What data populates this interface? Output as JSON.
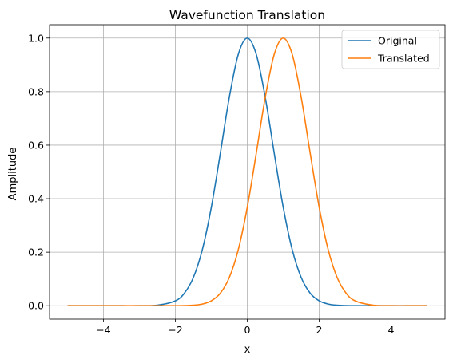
{
  "chart_data": {
    "type": "line",
    "title": "Wavefunction Translation",
    "xlabel": "x",
    "ylabel": "Amplitude",
    "xlim": [
      -5.5,
      5.5
    ],
    "ylim": [
      -0.05,
      1.05
    ],
    "xticks": [
      -4,
      -2,
      0,
      2,
      4
    ],
    "xtick_labels": [
      "−4",
      "−2",
      "0",
      "2",
      "4"
    ],
    "yticks": [
      0.0,
      0.2,
      0.4,
      0.6,
      0.8,
      1.0
    ],
    "ytick_labels": [
      "0.0",
      "0.2",
      "0.4",
      "0.6",
      "0.8",
      "1.0"
    ],
    "grid": true,
    "legend_position": "top-right",
    "x": [
      -5.0,
      -4.5,
      -4.0,
      -3.5,
      -3.0,
      -2.5,
      -2.0,
      -1.75,
      -1.5,
      -1.25,
      -1.0,
      -0.75,
      -0.5,
      -0.25,
      0.0,
      0.25,
      0.5,
      0.75,
      1.0,
      1.25,
      1.5,
      1.75,
      2.0,
      2.25,
      2.5,
      2.75,
      3.0,
      3.5,
      4.0,
      4.5,
      5.0
    ],
    "series": [
      {
        "name": "Original",
        "color": "#1f77b4",
        "values": [
          0.0,
          0.0,
          0.0,
          0.0,
          0.0001,
          0.0019,
          0.0183,
          0.0468,
          0.1054,
          0.2096,
          0.3679,
          0.5698,
          0.7788,
          0.9394,
          1.0,
          0.9394,
          0.7788,
          0.5698,
          0.3679,
          0.2096,
          0.1054,
          0.0468,
          0.0183,
          0.0063,
          0.0019,
          0.0005,
          0.0001,
          0.0,
          0.0,
          0.0,
          0.0
        ]
      },
      {
        "name": "Translated",
        "color": "#ff7f0e",
        "values": [
          0.0,
          0.0,
          0.0,
          0.0,
          0.0,
          0.0,
          0.0001,
          0.0005,
          0.0019,
          0.0063,
          0.0183,
          0.0468,
          0.1054,
          0.2096,
          0.3679,
          0.5698,
          0.7788,
          0.9394,
          1.0,
          0.9394,
          0.7788,
          0.5698,
          0.3679,
          0.2096,
          0.1054,
          0.0468,
          0.0183,
          0.0019,
          0.0001,
          0.0,
          0.0
        ]
      }
    ]
  }
}
